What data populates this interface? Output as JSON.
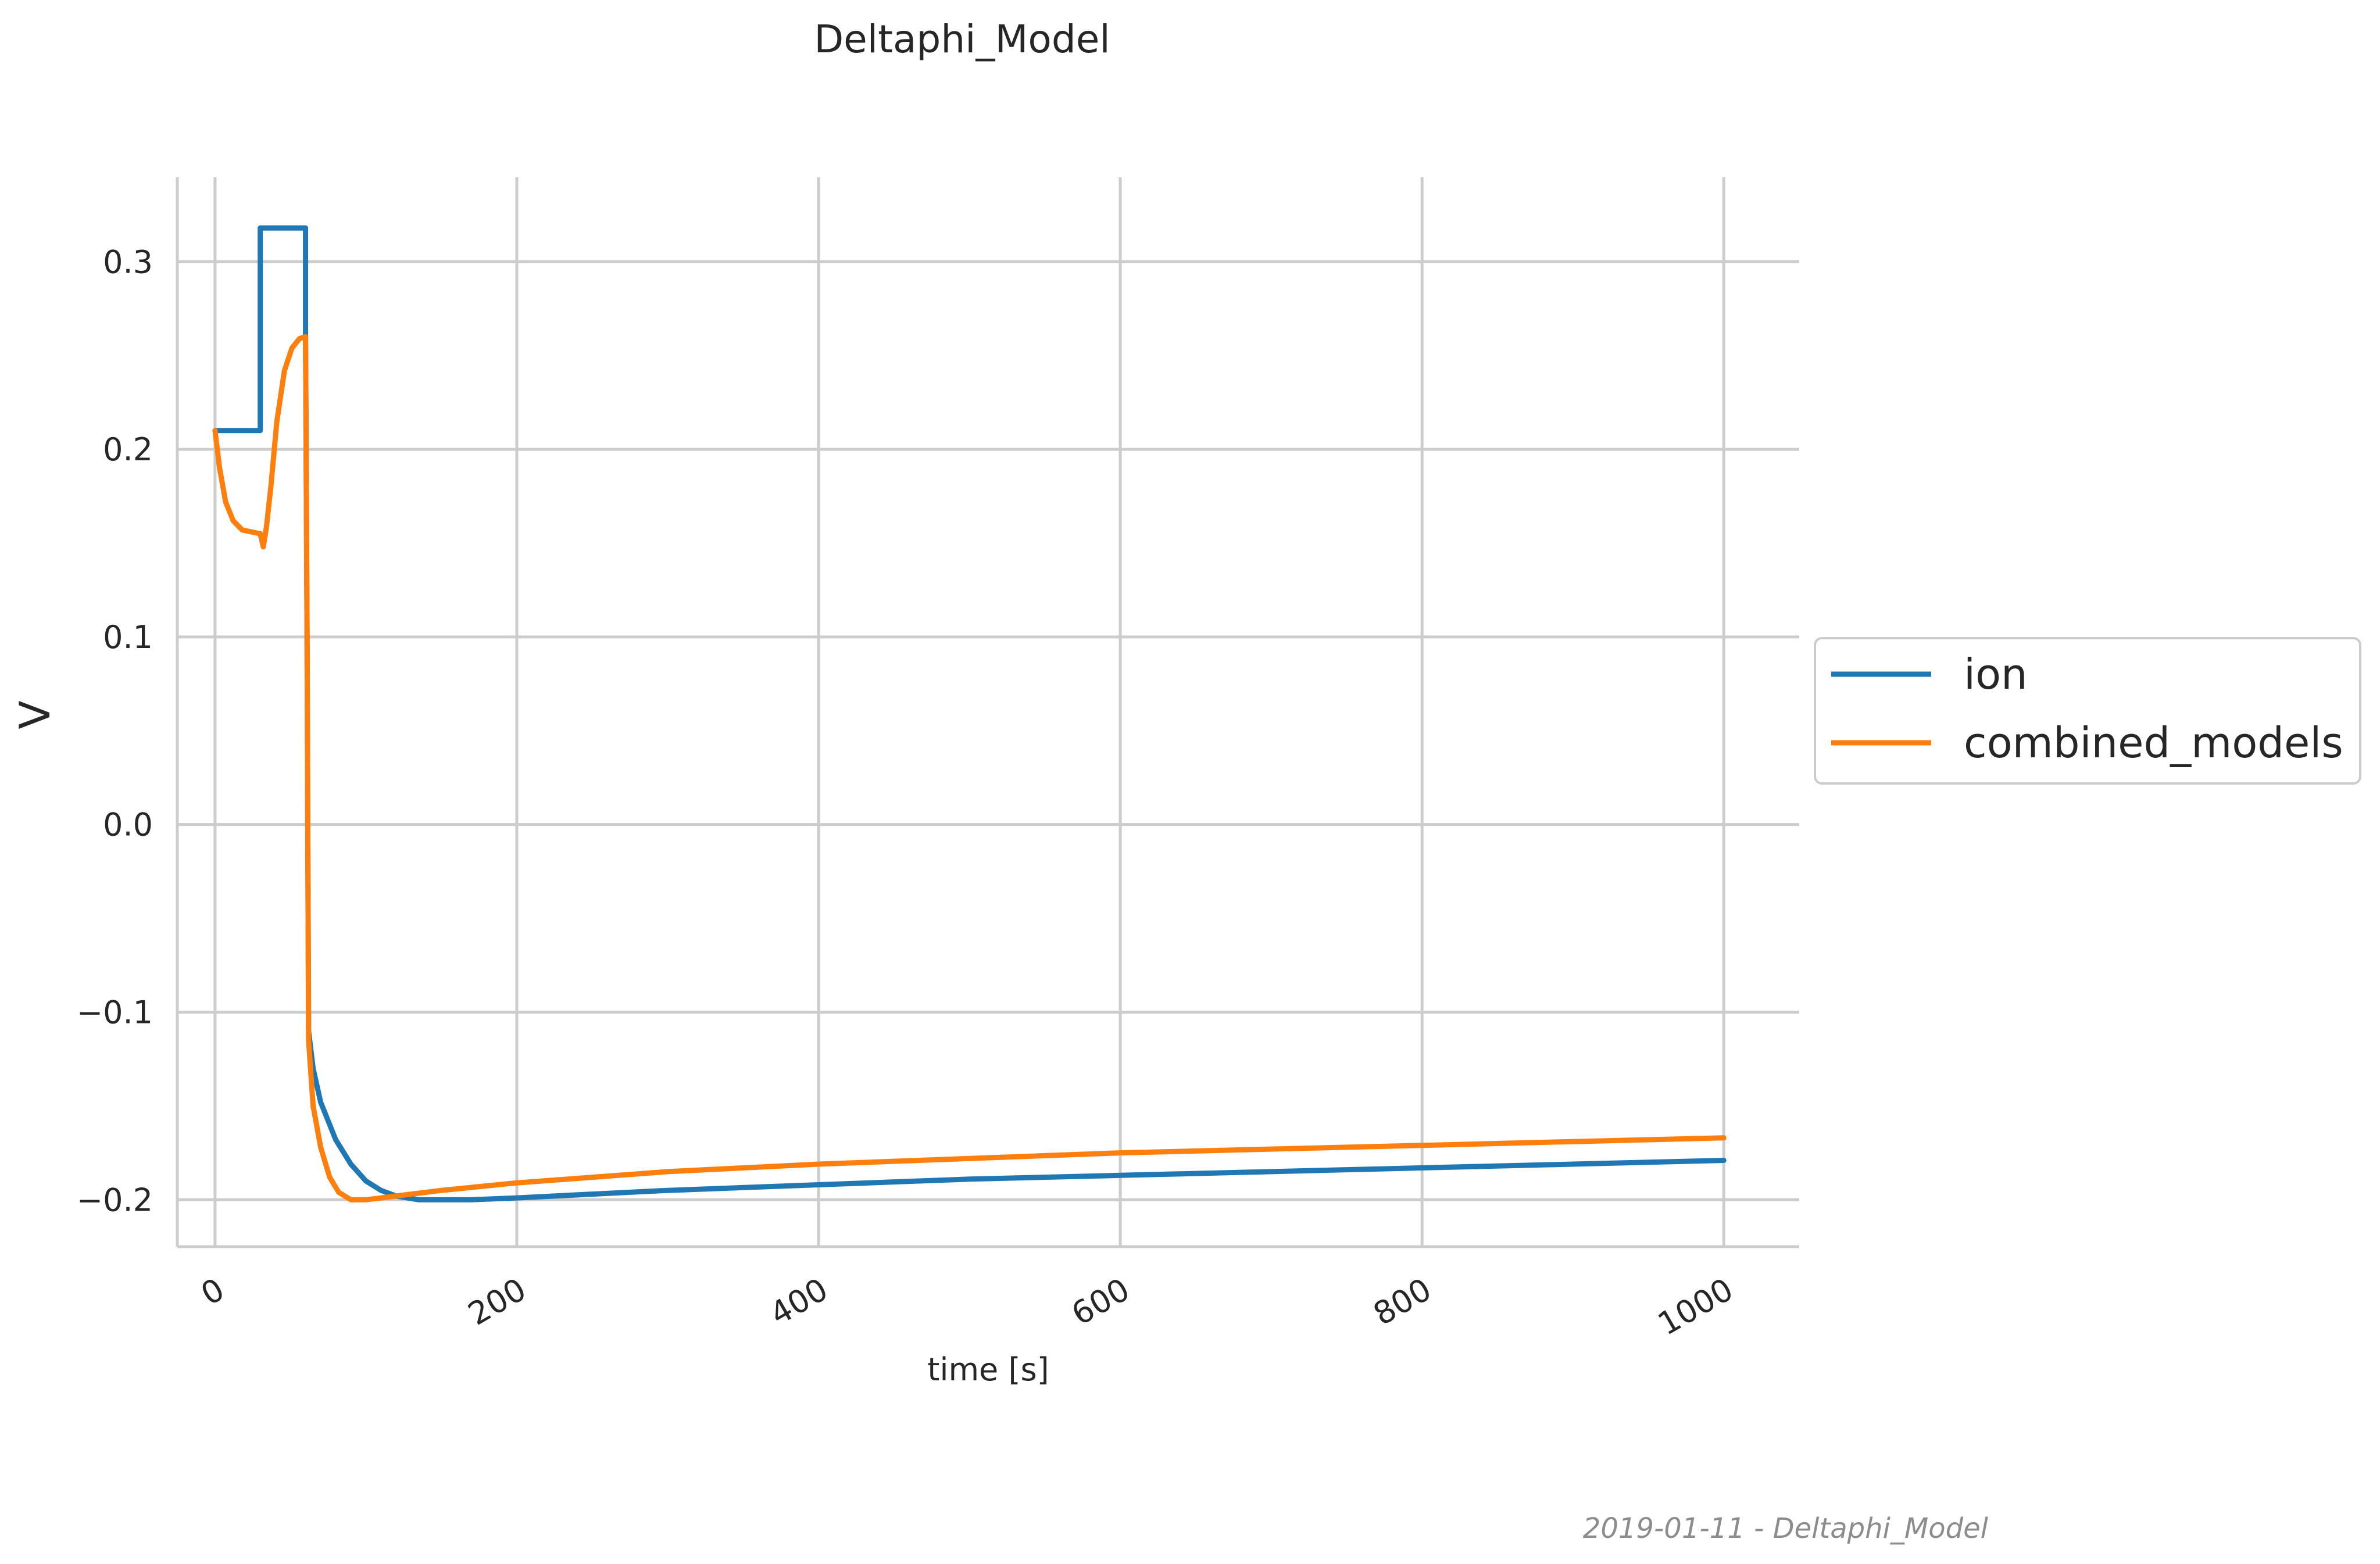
{
  "chart_data": {
    "type": "line",
    "title": "Deltaphi_Model",
    "xlabel": "time [s]",
    "ylabel": "V",
    "xlim": [
      -25,
      1050
    ],
    "ylim": [
      -0.225,
      0.345
    ],
    "xticks": [
      0,
      200,
      400,
      600,
      800,
      1000
    ],
    "xtick_labels": [
      "0",
      "200",
      "400",
      "600",
      "800",
      "1000"
    ],
    "yticks": [
      0.3,
      0.2,
      0.1,
      0.0,
      -0.1,
      -0.2
    ],
    "ytick_labels": [
      "0.3",
      "0.2",
      "0.1",
      "0.0",
      "−0.1",
      "−0.2"
    ],
    "grid": true,
    "legend_placement": "center-right, outside plot",
    "series": [
      {
        "name": "ion",
        "color": "#1f77b4",
        "x": [
          0,
          30,
          30,
          60,
          60,
          61,
          62,
          65,
          70,
          80,
          90,
          100,
          110,
          120,
          135,
          150,
          170,
          200,
          250,
          300,
          400,
          500,
          600,
          700,
          800,
          900,
          1000
        ],
        "y": [
          0.21,
          0.21,
          0.318,
          0.318,
          0.26,
          0.1,
          -0.11,
          -0.13,
          -0.148,
          -0.168,
          -0.181,
          -0.19,
          -0.195,
          -0.198,
          -0.2,
          -0.2,
          -0.2,
          -0.199,
          -0.197,
          -0.195,
          -0.192,
          -0.189,
          -0.187,
          -0.185,
          -0.183,
          -0.181,
          -0.179
        ]
      },
      {
        "name": "combined_models",
        "color": "#ff7f0e",
        "x": [
          0,
          3,
          7,
          12,
          18,
          24,
          30,
          32,
          34,
          37,
          41,
          46,
          51,
          56,
          60,
          61,
          62,
          65,
          70,
          76,
          82,
          90,
          100,
          110,
          130,
          150,
          200,
          250,
          300,
          400,
          500,
          600,
          700,
          800,
          900,
          1000
        ],
        "y": [
          0.21,
          0.19,
          0.172,
          0.162,
          0.157,
          0.156,
          0.155,
          0.148,
          0.158,
          0.18,
          0.215,
          0.242,
          0.254,
          0.259,
          0.26,
          0.1,
          -0.115,
          -0.15,
          -0.172,
          -0.188,
          -0.196,
          -0.2,
          -0.2,
          -0.199,
          -0.197,
          -0.195,
          -0.191,
          -0.188,
          -0.185,
          -0.181,
          -0.178,
          -0.175,
          -0.173,
          -0.171,
          -0.169,
          -0.167
        ]
      }
    ]
  },
  "footer": "2019-01-11 - Deltaphi_Model"
}
